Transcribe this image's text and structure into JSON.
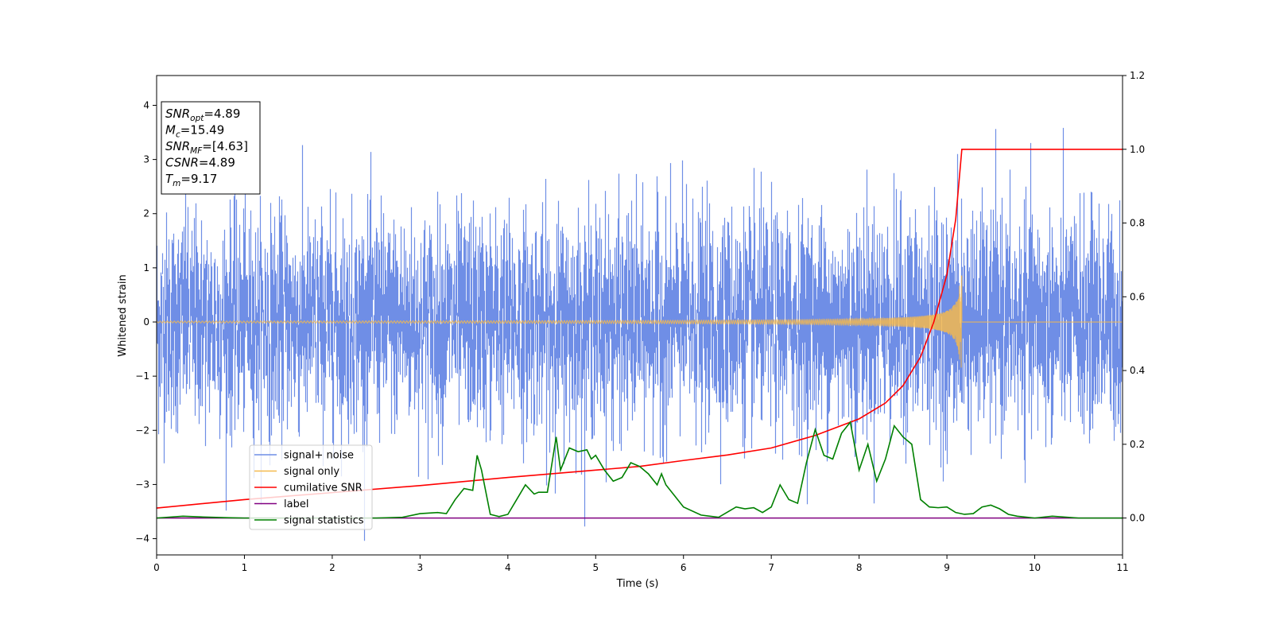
{
  "chart_data": {
    "type": "line",
    "xlabel": "Time (s)",
    "ylabel": "Whitened strain",
    "xlim": [
      0,
      11
    ],
    "ylim": [
      -4.3,
      4.55
    ],
    "y2lim": [
      -0.1,
      1.2
    ],
    "x_ticks": [
      "0",
      "1",
      "2",
      "3",
      "4",
      "5",
      "6",
      "7",
      "8",
      "9",
      "10",
      "11"
    ],
    "y_ticks": [
      "−4",
      "−3",
      "−2",
      "−1",
      "0",
      "1",
      "2",
      "3",
      "4"
    ],
    "y2_ticks": [
      "0.0",
      "0.2",
      "0.4",
      "0.6",
      "0.8",
      "1.0",
      "1.2"
    ],
    "grid": false,
    "legend_position": "lower-left",
    "merger_time": 9.17,
    "noise_std": 1.0,
    "noise_max_abs": 4.2,
    "signal_amplitude_at_merger": 0.85,
    "annotation": {
      "lines": [
        {
          "sym": "SNR",
          "sub": "opt",
          "value": "=4.89"
        },
        {
          "sym": "M",
          "sub": "c",
          "value": "=15.49"
        },
        {
          "sym": "SNR",
          "sub": "MF",
          "value": "=[4.63]"
        },
        {
          "sym": "CSNR",
          "sub": "",
          "value": "=4.89"
        },
        {
          "sym": "T",
          "sub": "m",
          "value": "=9.17"
        }
      ]
    },
    "series": [
      {
        "name": "signal+ noise",
        "color": "#6f8ee6",
        "axis": "left"
      },
      {
        "name": "signal only",
        "color": "#f5b94e",
        "axis": "left"
      },
      {
        "name": "cumilative SNR",
        "color": "#ff0000",
        "axis": "right",
        "x": [
          0,
          1,
          2,
          3,
          4,
          5,
          5.5,
          6,
          6.5,
          7,
          7.5,
          8,
          8.3,
          8.5,
          8.7,
          8.85,
          9.0,
          9.1,
          9.17,
          9.2,
          11
        ],
        "y": [
          0.027,
          0.05,
          0.069,
          0.088,
          0.11,
          0.13,
          0.14,
          0.156,
          0.171,
          0.19,
          0.224,
          0.269,
          0.312,
          0.359,
          0.437,
          0.531,
          0.66,
          0.81,
          1.0,
          1.0,
          1.0
        ]
      },
      {
        "name": "label",
        "color": "#800080",
        "axis": "right",
        "x": [
          0,
          11
        ],
        "y": [
          0.0,
          0.0
        ]
      },
      {
        "name": "signal statistics",
        "color": "#008000",
        "axis": "right",
        "x": [
          0,
          0.3,
          0.5,
          0.8,
          1.0,
          1.5,
          2.0,
          2.5,
          2.8,
          3.0,
          3.2,
          3.3,
          3.4,
          3.5,
          3.6,
          3.65,
          3.7,
          3.8,
          3.9,
          4.0,
          4.1,
          4.2,
          4.3,
          4.35,
          4.45,
          4.55,
          4.6,
          4.7,
          4.8,
          4.9,
          4.95,
          5.0,
          5.1,
          5.2,
          5.3,
          5.4,
          5.5,
          5.6,
          5.7,
          5.75,
          5.8,
          5.9,
          6.0,
          6.2,
          6.4,
          6.6,
          6.7,
          6.8,
          6.9,
          7.0,
          7.1,
          7.2,
          7.3,
          7.4,
          7.5,
          7.6,
          7.7,
          7.8,
          7.9,
          8.0,
          8.1,
          8.2,
          8.3,
          8.4,
          8.5,
          8.6,
          8.7,
          8.8,
          8.9,
          9.0,
          9.1,
          9.2,
          9.3,
          9.4,
          9.5,
          9.6,
          9.7,
          9.8,
          10.0,
          10.2,
          10.5,
          11.0
        ],
        "y": [
          0.0,
          0.005,
          0.003,
          0.001,
          0.0,
          0.0,
          0.0,
          0.0,
          0.002,
          0.012,
          0.015,
          0.012,
          0.05,
          0.08,
          0.075,
          0.17,
          0.13,
          0.01,
          0.004,
          0.01,
          0.05,
          0.09,
          0.065,
          0.07,
          0.07,
          0.22,
          0.13,
          0.19,
          0.18,
          0.185,
          0.16,
          0.17,
          0.13,
          0.1,
          0.11,
          0.15,
          0.14,
          0.12,
          0.09,
          0.12,
          0.09,
          0.06,
          0.03,
          0.008,
          0.002,
          0.03,
          0.025,
          0.028,
          0.015,
          0.03,
          0.09,
          0.05,
          0.04,
          0.15,
          0.24,
          0.17,
          0.16,
          0.23,
          0.26,
          0.13,
          0.2,
          0.1,
          0.16,
          0.25,
          0.22,
          0.2,
          0.05,
          0.03,
          0.028,
          0.03,
          0.015,
          0.01,
          0.012,
          0.03,
          0.035,
          0.025,
          0.01,
          0.005,
          0.0,
          0.005,
          0.0,
          0.0
        ]
      }
    ]
  }
}
